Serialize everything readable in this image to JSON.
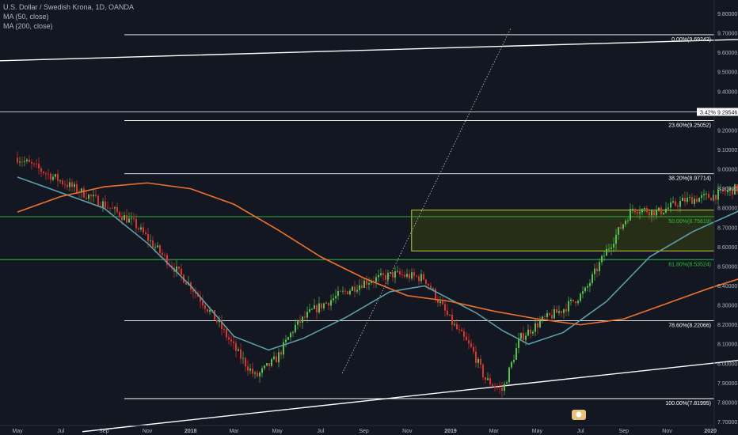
{
  "legend": {
    "symbol": "U.S. Dollar / Swedish Krona, 1D, OANDA",
    "ma50": "MA (50, close)",
    "ma200": "MA (200, close)"
  },
  "colors": {
    "background": "#131722",
    "up": "#53c24a",
    "down": "#e2302b",
    "ma50": "#5aa0aa",
    "ma200": "#f0722a",
    "trendline": "#ffffff",
    "triangle": "#c8c83c",
    "fib_white": "#ffffff",
    "fib_green": "#2bbf3a",
    "zone_fill": "#2c3316",
    "zone_border": "#c8c83c",
    "projection": "#e2302b",
    "axis_text": "#b2b5be"
  },
  "price_label": {
    "pct": "3.42%",
    "price": "9.29546"
  },
  "chart_data": {
    "type": "candlestick",
    "title": "U.S. Dollar / Swedish Krona, 1D, OANDA",
    "ylim": [
      7.64,
      9.92
    ],
    "y_ticks": [
      "9.80000",
      "9.70000",
      "9.60000",
      "9.50000",
      "9.40000",
      "9.30000",
      "9.20000",
      "9.10000",
      "9.00000",
      "8.90000",
      "8.80000",
      "8.70000",
      "8.60000",
      "8.50000",
      "8.40000",
      "8.30000",
      "8.20000",
      "8.10000",
      "8.00000",
      "7.90000",
      "7.80000",
      "7.70000"
    ],
    "x_ticks": [
      "May",
      "Jul",
      "Sep",
      "Nov",
      "2018",
      "Mar",
      "May",
      "Jul",
      "Sep",
      "Nov",
      "2019",
      "Mar",
      "May",
      "Jul",
      "Sep",
      "Nov",
      "2020"
    ],
    "grid": false,
    "fib_levels": [
      {
        "label": "0.00%(9.69242)",
        "value": 9.69242,
        "color": "white"
      },
      {
        "label": "23.60%(9.25052)",
        "value": 9.25052,
        "color": "white"
      },
      {
        "label": "38.20%(8.97714)",
        "value": 8.97714,
        "color": "white"
      },
      {
        "label": "50.00%(8.75619)",
        "value": 8.75619,
        "color": "green"
      },
      {
        "label": "61.80%(8.53524)",
        "value": 8.53524,
        "color": "green"
      },
      {
        "label": "78.60%(8.22066)",
        "value": 8.22066,
        "color": "white"
      },
      {
        "label": "100.00%(7.81995)",
        "value": 7.81995,
        "color": "white"
      }
    ],
    "current_price": 9.29546,
    "price_path": [
      [
        0,
        9.06
      ],
      [
        1,
        8.94
      ],
      [
        2,
        8.82
      ],
      [
        2.7,
        8.72
      ],
      [
        3.3,
        8.57
      ],
      [
        4,
        8.4
      ],
      [
        4.6,
        8.22
      ],
      [
        5.1,
        8.05
      ],
      [
        5.5,
        7.93
      ],
      [
        6,
        8.03
      ],
      [
        6.4,
        8.19
      ],
      [
        6.8,
        8.27
      ],
      [
        7.4,
        8.35
      ],
      [
        8,
        8.42
      ],
      [
        8.7,
        8.46
      ],
      [
        9.4,
        8.44
      ],
      [
        10,
        8.22
      ],
      [
        10.5,
        8.07
      ],
      [
        10.8,
        7.92
      ],
      [
        11.2,
        7.86
      ],
      [
        11.6,
        8.13
      ],
      [
        12.1,
        8.22
      ],
      [
        12.6,
        8.28
      ],
      [
        13.1,
        8.37
      ],
      [
        13.6,
        8.58
      ],
      [
        14.2,
        8.8
      ],
      [
        14.8,
        8.78
      ],
      [
        15.4,
        8.84
      ],
      [
        16,
        8.86
      ],
      [
        16.6,
        8.9
      ],
      [
        17.1,
        8.88
      ],
      [
        17.8,
        9.17
      ],
      [
        18.4,
        9.05
      ],
      [
        19,
        8.91
      ],
      [
        19.5,
        8.84
      ],
      [
        20,
        8.87
      ],
      [
        20.5,
        9.02
      ],
      [
        21,
        9.08
      ],
      [
        21.5,
        9.07
      ],
      [
        22,
        9.04
      ],
      [
        22.5,
        9.02
      ],
      [
        23,
        8.97
      ],
      [
        23.5,
        8.92
      ],
      [
        24,
        8.86
      ],
      [
        24.6,
        9.01
      ],
      [
        25.2,
        9.22
      ],
      [
        25.8,
        9.22
      ],
      [
        26.4,
        9.24
      ],
      [
        26.9,
        9.27
      ],
      [
        27.5,
        9.2
      ],
      [
        28.1,
        9.38
      ],
      [
        28.8,
        9.58
      ],
      [
        29.3,
        9.67
      ],
      [
        29.8,
        9.56
      ],
      [
        30.3,
        9.44
      ],
      [
        30.8,
        9.47
      ],
      [
        31.1,
        9.4
      ],
      [
        31.35,
        9.3
      ]
    ],
    "ma50_path": [
      [
        0,
        8.96
      ],
      [
        1,
        8.88
      ],
      [
        2,
        8.8
      ],
      [
        3,
        8.62
      ],
      [
        4,
        8.4
      ],
      [
        5,
        8.14
      ],
      [
        5.8,
        8.07
      ],
      [
        6.6,
        8.13
      ],
      [
        7.6,
        8.24
      ],
      [
        8.6,
        8.37
      ],
      [
        9.4,
        8.4
      ],
      [
        10,
        8.33
      ],
      [
        10.6,
        8.26
      ],
      [
        11.2,
        8.17
      ],
      [
        11.8,
        8.1
      ],
      [
        12.6,
        8.16
      ],
      [
        13.6,
        8.32
      ],
      [
        14.6,
        8.55
      ],
      [
        15.6,
        8.68
      ],
      [
        16.6,
        8.78
      ],
      [
        17.6,
        8.91
      ],
      [
        18.6,
        8.97
      ],
      [
        19.6,
        8.99
      ],
      [
        20.6,
        8.98
      ],
      [
        21.6,
        9.01
      ],
      [
        22.6,
        9.03
      ],
      [
        23.6,
        8.98
      ],
      [
        24.6,
        8.97
      ],
      [
        25.6,
        9.05
      ],
      [
        26.6,
        9.16
      ],
      [
        27.6,
        9.21
      ],
      [
        28.6,
        9.29
      ],
      [
        29.6,
        9.38
      ],
      [
        30.6,
        9.48
      ],
      [
        31.2,
        9.5
      ]
    ],
    "ma200_path": [
      [
        0,
        8.78
      ],
      [
        1,
        8.86
      ],
      [
        2,
        8.91
      ],
      [
        3,
        8.93
      ],
      [
        4,
        8.9
      ],
      [
        5,
        8.82
      ],
      [
        6,
        8.69
      ],
      [
        7,
        8.55
      ],
      [
        8,
        8.44
      ],
      [
        9,
        8.35
      ],
      [
        10,
        8.32
      ],
      [
        11,
        8.27
      ],
      [
        12,
        8.23
      ],
      [
        13,
        8.2
      ],
      [
        14,
        8.23
      ],
      [
        15,
        8.31
      ],
      [
        16,
        8.39
      ],
      [
        17,
        8.46
      ],
      [
        18,
        8.5
      ],
      [
        19,
        8.54
      ],
      [
        20,
        8.62
      ],
      [
        21,
        8.74
      ],
      [
        22,
        8.82
      ],
      [
        23,
        8.88
      ],
      [
        24,
        8.92
      ],
      [
        25,
        8.98
      ],
      [
        26,
        9.04
      ],
      [
        27,
        9.09
      ],
      [
        28,
        9.13
      ],
      [
        29,
        9.16
      ],
      [
        30,
        9.18
      ],
      [
        31,
        9.21
      ]
    ],
    "channel_upper": [
      [
        -9.5,
        9.5
      ],
      [
        32.5,
        9.77
      ],
      [
        44,
        9.88
      ]
    ],
    "channel_lower": [
      [
        1.5,
        7.65
      ],
      [
        30,
        8.34
      ],
      [
        44,
        8.57
      ]
    ],
    "dotted_line": [
      [
        7.5,
        7.95
      ],
      [
        11.4,
        9.73
      ]
    ],
    "triangle": {
      "upper": [
        [
          31.0,
          9.7
        ],
        [
          35.5,
          8.76
        ]
      ],
      "lower": [
        [
          25.8,
          8.84
        ],
        [
          33.7,
          9.57
        ]
      ],
      "flat": [
        [
          28.0,
          9.26
        ],
        [
          34.8,
          9.25
        ]
      ]
    },
    "projection": [
      [
        31.35,
        9.3
      ],
      [
        33.7,
        9.44
      ],
      [
        33.2,
        9.21
      ],
      [
        35.4,
        8.78
      ]
    ],
    "zone": {
      "low": 8.58,
      "high": 8.79,
      "x_start": 9.1
    }
  }
}
